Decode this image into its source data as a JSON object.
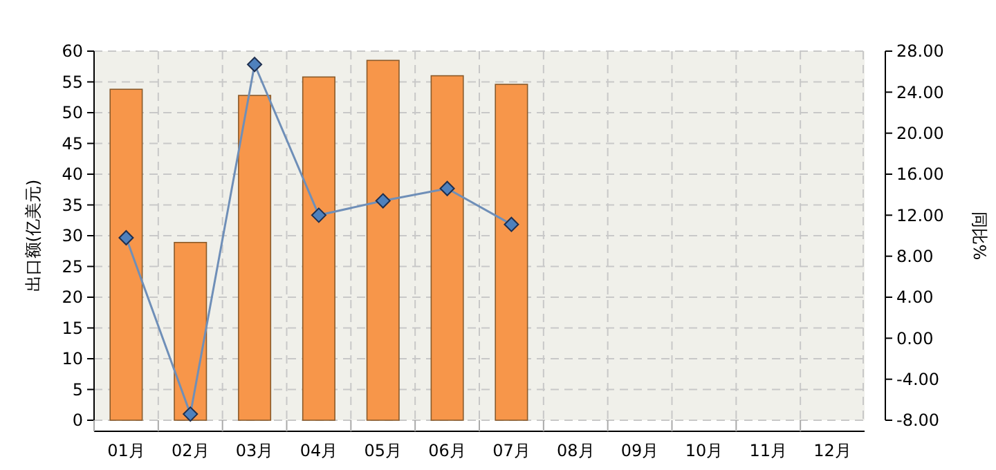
{
  "chart_data": {
    "type": "bar",
    "ylabel": "出口额(亿美元)",
    "y2label": "同比%",
    "categories": [
      "01月",
      "02月",
      "03月",
      "04月",
      "05月",
      "06月",
      "07月",
      "08月",
      "09月",
      "10月",
      "11月",
      "12月"
    ],
    "series": [
      {
        "color": "#f7964a",
        "values": [
          53.8,
          28.9,
          52.8,
          55.8,
          58.5,
          56,
          54.6,
          null,
          null,
          null,
          null,
          null
        ]
      },
      {
        "type": "line",
        "axis": "y2",
        "color": "#6f8fb8",
        "marker": "diamond",
        "values": [
          9.8,
          -7.4,
          26.7,
          12,
          13.4,
          14.6,
          11.1,
          null,
          null,
          null,
          null,
          null
        ]
      }
    ],
    "ylim": [
      0,
      60
    ],
    "yticks": [
      0,
      5,
      10,
      15,
      20,
      25,
      30,
      35,
      40,
      45,
      50,
      55,
      60
    ],
    "y2lim": [
      -8,
      28
    ],
    "y2ticks": [
      {
        "value": -8,
        "label": "-8.00"
      },
      {
        "value": -4,
        "label": "-4.00"
      },
      {
        "value": 0,
        "label": "0.00"
      },
      {
        "value": 4,
        "label": "4.00"
      },
      {
        "value": 8,
        "label": "8.00"
      },
      {
        "value": 12,
        "label": "12.00"
      },
      {
        "value": 16,
        "label": "16.00"
      },
      {
        "value": 20,
        "label": "20.00"
      },
      {
        "value": 24,
        "label": "24.00"
      },
      {
        "value": 28,
        "label": "28.00"
      }
    ],
    "grid": true
  }
}
